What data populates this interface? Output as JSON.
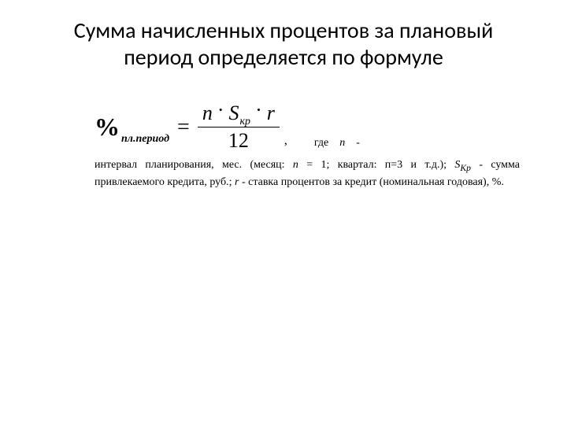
{
  "title": {
    "line1": "Сумма начисленных процентов за плановый",
    "line2": "период определяется по формуле"
  },
  "formula": {
    "lhs_symbol": "%",
    "lhs_sub": "пл.период",
    "eq": "=",
    "num_n": "n",
    "dot": "·",
    "num_S": "S",
    "num_S_sub": "кр",
    "num_r": "r",
    "den": "12",
    "comma": ","
  },
  "trail": {
    "gde": "где",
    "n": "n",
    "dash": "-"
  },
  "desc": {
    "part1": "интервал планирования, мес. (месяц: ",
    "n": "n",
    "part2": " = 1; квартал: п=3 и т.д.); ",
    "Skr": "S",
    "Skr_sub": "Кр",
    "part3": " - сумма привлекаемого кредита, руб.; ",
    "r": "r",
    "part4": " - ставка процентов за кредит (номинальная годовая), %."
  },
  "style": {
    "background": "#ffffff",
    "text_color": "#000000",
    "title_fontsize": 28,
    "formula_fontsize": 26,
    "body_fontsize": 14
  }
}
